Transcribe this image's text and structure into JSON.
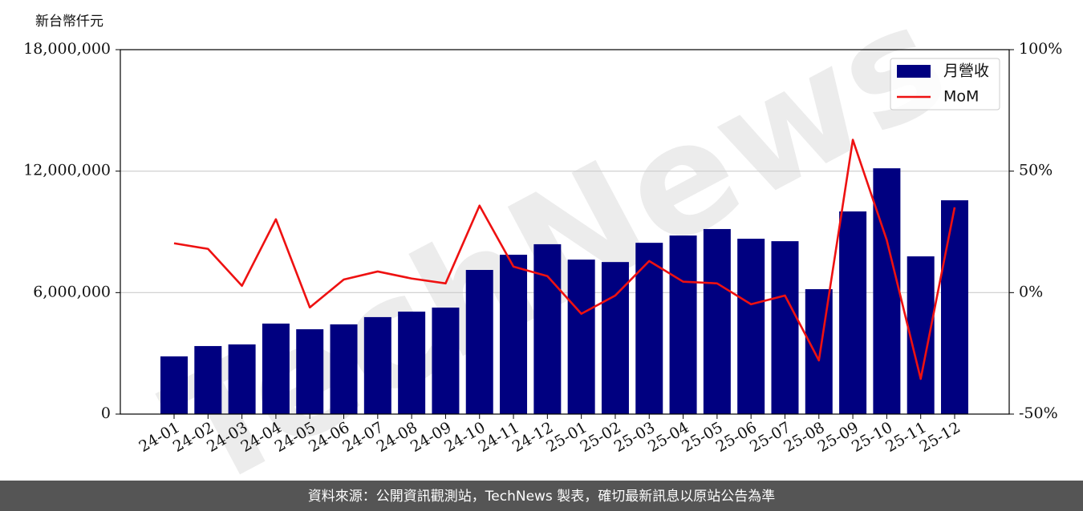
{
  "chart_data": {
    "type": "bar_line",
    "y_label": "新台幣仟元",
    "watermark": "TechNews",
    "source": "資料來源：公開資訊觀測站，TechNews 製表，確切最新訊息以原站公告為準",
    "categories": [
      "24-01",
      "24-02",
      "24-03",
      "24-04",
      "24-05",
      "24-06",
      "24-07",
      "24-08",
      "24-09",
      "24-10",
      "24-11",
      "24-12",
      "25-01",
      "25-02",
      "25-03",
      "25-04",
      "25-05",
      "25-06",
      "25-07",
      "25-08",
      "25-09",
      "25-10",
      "25-11",
      "25-12"
    ],
    "series": [
      {
        "name": "月營收",
        "type": "bar",
        "color": "#000080",
        "values": [
          2850000,
          3360000,
          3440000,
          4470000,
          4190000,
          4430000,
          4790000,
          5060000,
          5260000,
          7120000,
          7870000,
          8390000,
          7630000,
          7510000,
          8460000,
          8820000,
          9140000,
          8660000,
          8540000,
          6170000,
          10010000,
          12140000,
          7790000,
          10560000
        ]
      },
      {
        "name": "MoM",
        "type": "line",
        "color": "#ee1111",
        "axis": "y2",
        "values": [
          20.3,
          18.0,
          2.8,
          30.2,
          -6.1,
          5.4,
          8.7,
          5.8,
          3.8,
          35.8,
          10.7,
          6.8,
          -8.7,
          -1.2,
          13.0,
          4.5,
          3.8,
          -4.8,
          -1.2,
          -27.9,
          62.9,
          21.6,
          -35.5,
          35.1
        ]
      }
    ],
    "ylim": [
      0,
      18000000
    ],
    "yticks": [
      0,
      {
        "value": 6000000,
        "label": "6,000,000"
      },
      {
        "value": 12000000,
        "label": "12,000,000"
      },
      {
        "value": 18000000,
        "label": "18,000,000"
      }
    ],
    "y2lim": [
      -50,
      100
    ],
    "y2ticks": [
      {
        "value": -50,
        "label": "-50%"
      },
      {
        "value": 0,
        "label": "0%"
      },
      {
        "value": 50,
        "label": "50%"
      },
      {
        "value": 100,
        "label": "100%"
      }
    ],
    "grid": true,
    "legend": "upper right"
  }
}
